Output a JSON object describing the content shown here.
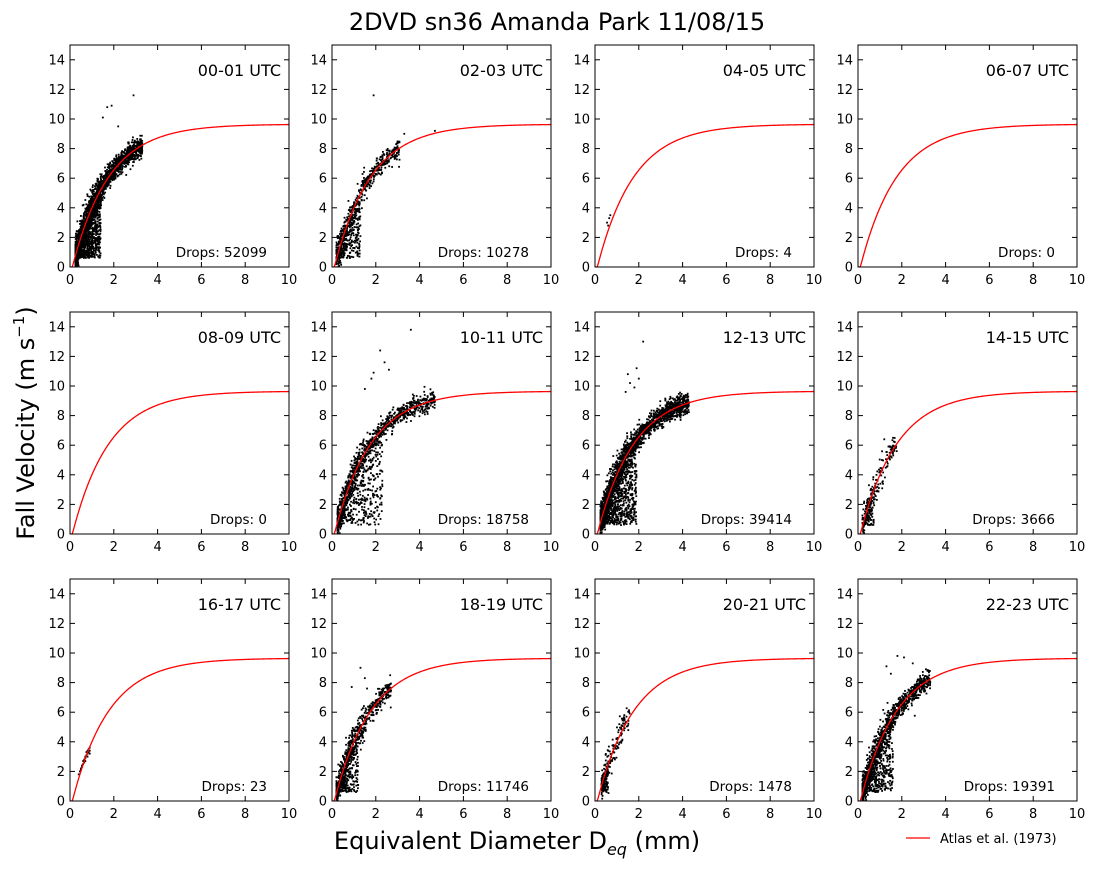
{
  "figure": {
    "title": "2DVD sn36 Amanda Park 11/08/15",
    "xlabel": "Equivalent Diameter D",
    "xlabel_sub": "eq",
    "xlabel_unit": " (mm)",
    "ylabel": "Fall Velocity (m s",
    "ylabel_sup": "−1",
    "ylabel_end": ")",
    "legend": {
      "label": "Atlas et al. (1973)",
      "color": "#ff0000",
      "placement": "bottom-right"
    }
  },
  "chart_data": {
    "type": "scatter",
    "grid": false,
    "xlim": [
      0,
      10
    ],
    "ylim": [
      0,
      15
    ],
    "xticks": [
      0,
      2,
      4,
      6,
      8,
      10
    ],
    "yticks": [
      0,
      2,
      4,
      6,
      8,
      10,
      12,
      14
    ],
    "reference_curve": {
      "name": "Atlas et al. (1973)",
      "formula": "v = 9.65 - 10.3*exp(-0.6*D)",
      "color": "#ff0000"
    },
    "point_color": "#000000",
    "panels": [
      {
        "hour": "00-01 UTC",
        "drops_label": "Drops: 52099",
        "drops": 52099,
        "dmax": 3.3,
        "dmin": 0.25,
        "lowcluster": [
          0.4,
          1.4
        ],
        "outliers": [
          [
            1.7,
            10.8
          ],
          [
            1.9,
            10.9
          ],
          [
            2.9,
            11.6
          ],
          [
            1.5,
            10.1
          ],
          [
            2.2,
            9.5
          ]
        ]
      },
      {
        "hour": "02-03 UTC",
        "drops_label": "Drops: 10278",
        "drops": 10278,
        "dmax": 3.1,
        "dmin": 0.2,
        "lowcluster": [
          0.3,
          1.3
        ],
        "outliers": [
          [
            1.9,
            11.6
          ],
          [
            4.7,
            9.2
          ],
          [
            3.3,
            9.0
          ]
        ]
      },
      {
        "hour": "04-05 UTC",
        "drops_label": "Drops: 4",
        "drops": 4,
        "points": [
          [
            0.65,
            3.3
          ],
          [
            0.7,
            3.5
          ],
          [
            0.55,
            3.0
          ],
          [
            0.6,
            2.8
          ]
        ]
      },
      {
        "hour": "06-07 UTC",
        "drops_label": "Drops: 0",
        "drops": 0
      },
      {
        "hour": "08-09 UTC",
        "drops_label": "Drops: 0",
        "drops": 0
      },
      {
        "hour": "10-11 UTC",
        "drops_label": "Drops: 18758",
        "drops": 18758,
        "dmax": 4.7,
        "dmin": 0.25,
        "lowcluster": [
          0.3,
          2.3
        ],
        "outliers": [
          [
            3.6,
            13.8
          ],
          [
            2.2,
            12.4
          ],
          [
            2.4,
            11.6
          ],
          [
            2.6,
            11.1
          ],
          [
            1.9,
            10.9
          ],
          [
            1.8,
            10.5
          ],
          [
            1.5,
            9.8
          ]
        ]
      },
      {
        "hour": "12-13 UTC",
        "drops_label": "Drops: 39414",
        "drops": 39414,
        "dmax": 4.3,
        "dmin": 0.25,
        "lowcluster": [
          0.3,
          1.9
        ],
        "outliers": [
          [
            2.2,
            13.0
          ],
          [
            1.9,
            11.2
          ],
          [
            2.0,
            10.5
          ],
          [
            1.6,
            10.2
          ],
          [
            1.4,
            9.6
          ],
          [
            1.8,
            9.9
          ],
          [
            1.5,
            10.8
          ]
        ]
      },
      {
        "hour": "14-15 UTC",
        "drops_label": "Drops: 3666",
        "drops": 3666,
        "dmax": 1.8,
        "dmin": 0.2,
        "lowcluster": [
          0.3,
          0.8
        ],
        "outliers": [
          [
            1.6,
            6.5
          ],
          [
            1.2,
            6.4
          ]
        ]
      },
      {
        "hour": "16-17 UTC",
        "drops_label": "Drops: 23",
        "drops": 23,
        "points": [
          [
            0.4,
            1.8
          ],
          [
            0.45,
            2.0
          ],
          [
            0.5,
            2.1
          ],
          [
            0.55,
            2.3
          ],
          [
            0.6,
            2.5
          ],
          [
            0.6,
            2.7
          ],
          [
            0.65,
            2.8
          ],
          [
            0.65,
            2.6
          ],
          [
            0.7,
            3.0
          ],
          [
            0.7,
            2.9
          ],
          [
            0.75,
            3.1
          ],
          [
            0.75,
            3.3
          ],
          [
            0.8,
            3.2
          ],
          [
            0.8,
            3.4
          ],
          [
            0.85,
            3.5
          ],
          [
            0.85,
            3.3
          ],
          [
            0.9,
            3.6
          ],
          [
            0.9,
            3.4
          ],
          [
            0.5,
            2.2
          ],
          [
            0.55,
            2.4
          ],
          [
            0.7,
            2.7
          ],
          [
            0.8,
            3.0
          ],
          [
            0.9,
            3.2
          ]
        ]
      },
      {
        "hour": "18-19 UTC",
        "drops_label": "Drops: 11746",
        "drops": 11746,
        "dmax": 2.7,
        "dmin": 0.2,
        "lowcluster": [
          0.3,
          1.2
        ],
        "outliers": [
          [
            1.3,
            9.0
          ],
          [
            1.5,
            8.3
          ],
          [
            1.6,
            7.6
          ],
          [
            0.9,
            7.7
          ]
        ]
      },
      {
        "hour": "20-21 UTC",
        "drops_label": "Drops: 1478",
        "drops": 1478,
        "dmax": 1.6,
        "dmin": 0.3,
        "lowcluster": [
          0.35,
          0.6
        ],
        "outliers": []
      },
      {
        "hour": "22-23 UTC",
        "drops_label": "Drops: 19391",
        "drops": 19391,
        "dmax": 3.3,
        "dmin": 0.2,
        "lowcluster": [
          0.3,
          1.6
        ],
        "outliers": [
          [
            1.8,
            9.8
          ],
          [
            2.1,
            9.7
          ],
          [
            2.5,
            9.3
          ],
          [
            1.3,
            9.1
          ],
          [
            1.5,
            8.6
          ],
          [
            3.1,
            8.9
          ]
        ]
      }
    ]
  }
}
